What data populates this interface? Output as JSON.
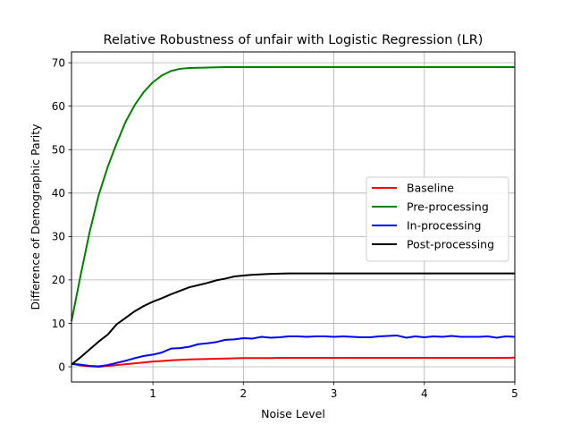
{
  "chart_data": {
    "type": "line",
    "title": "Relative Robustness of unfair with Logistic Regression (LR)",
    "xlabel": "Noise Level",
    "ylabel": "Difference of Demographic Parity",
    "xlim": [
      0.1,
      5.0
    ],
    "ylim": [
      -3.5,
      72.5
    ],
    "xticks": [
      1,
      2,
      3,
      4,
      5
    ],
    "yticks": [
      0,
      10,
      20,
      30,
      40,
      50,
      60,
      70
    ],
    "grid": true,
    "legend_position": "center-right",
    "x": [
      0.1,
      0.2,
      0.3,
      0.4,
      0.5,
      0.6,
      0.7,
      0.8,
      0.9,
      1.0,
      1.1,
      1.2,
      1.3,
      1.4,
      1.5,
      1.6,
      1.7,
      1.8,
      1.9,
      2.0,
      2.1,
      2.2,
      2.3,
      2.4,
      2.5,
      2.6,
      2.7,
      2.8,
      2.9,
      3.0,
      3.1,
      3.2,
      3.3,
      3.4,
      3.5,
      3.6,
      3.7,
      3.8,
      3.9,
      4.0,
      4.1,
      4.2,
      4.3,
      4.4,
      4.5,
      4.6,
      4.7,
      4.8,
      4.9,
      5.0
    ],
    "series": [
      {
        "name": "Baseline",
        "color": "#ff0000",
        "values": [
          0.7,
          0.3,
          0.1,
          0.0,
          0.2,
          0.4,
          0.6,
          0.8,
          1.0,
          1.2,
          1.35,
          1.5,
          1.6,
          1.7,
          1.75,
          1.8,
          1.85,
          1.9,
          1.95,
          2.0,
          2.0,
          2.0,
          2.0,
          2.05,
          2.05,
          2.05,
          2.05,
          2.05,
          2.05,
          2.05,
          2.05,
          2.05,
          2.05,
          2.05,
          2.05,
          2.05,
          2.05,
          2.05,
          2.05,
          2.05,
          2.05,
          2.05,
          2.05,
          2.05,
          2.05,
          2.05,
          2.05,
          2.05,
          2.05,
          2.1
        ]
      },
      {
        "name": "Pre-processing",
        "color": "#008000",
        "values": [
          10.5,
          21.0,
          31.0,
          39.5,
          46.0,
          51.5,
          56.5,
          60.3,
          63.3,
          65.5,
          67.1,
          68.1,
          68.6,
          68.8,
          68.85,
          68.9,
          68.95,
          69.0,
          69.0,
          69.0,
          69.0,
          69.0,
          69.0,
          69.0,
          69.0,
          69.0,
          69.0,
          69.0,
          69.0,
          69.0,
          69.0,
          69.0,
          69.0,
          69.0,
          69.0,
          69.0,
          69.0,
          69.0,
          69.0,
          69.0,
          69.0,
          69.0,
          69.0,
          69.0,
          69.0,
          69.0,
          69.0,
          69.0,
          69.0,
          69.0
        ]
      },
      {
        "name": "In-processing",
        "color": "#0000ff",
        "values": [
          0.7,
          0.5,
          0.2,
          0.1,
          0.4,
          0.9,
          1.4,
          2.0,
          2.5,
          2.8,
          3.3,
          4.2,
          4.3,
          4.6,
          5.2,
          5.4,
          5.7,
          6.2,
          6.3,
          6.6,
          6.5,
          6.9,
          6.7,
          6.8,
          7.0,
          7.0,
          6.9,
          7.0,
          7.0,
          6.9,
          7.0,
          6.9,
          6.8,
          6.8,
          7.0,
          7.1,
          7.2,
          6.7,
          7.0,
          6.8,
          7.0,
          6.9,
          7.1,
          6.9,
          6.9,
          6.9,
          7.0,
          6.7,
          7.0,
          6.9
        ]
      },
      {
        "name": "Post-processing",
        "color": "#000000",
        "values": [
          0.5,
          2.2,
          4.0,
          5.8,
          7.4,
          9.8,
          11.3,
          12.8,
          14.0,
          15.0,
          15.8,
          16.7,
          17.5,
          18.3,
          18.8,
          19.3,
          19.9,
          20.3,
          20.8,
          21.0,
          21.2,
          21.3,
          21.4,
          21.45,
          21.5,
          21.5,
          21.5,
          21.5,
          21.5,
          21.5,
          21.5,
          21.5,
          21.5,
          21.5,
          21.5,
          21.5,
          21.5,
          21.5,
          21.5,
          21.5,
          21.5,
          21.5,
          21.5,
          21.5,
          21.5,
          21.5,
          21.5,
          21.5,
          21.5,
          21.5
        ]
      }
    ]
  }
}
